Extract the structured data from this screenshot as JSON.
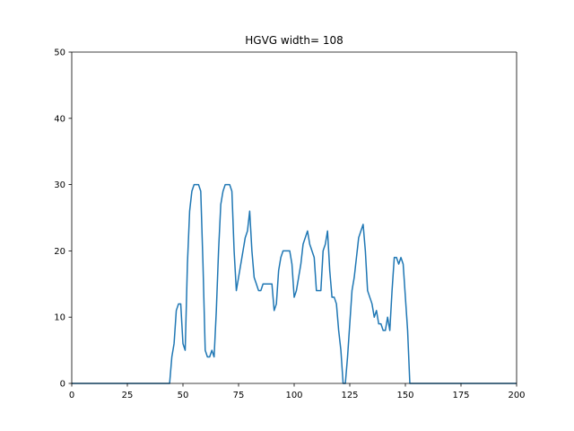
{
  "chart_data": {
    "type": "line",
    "title": "HGVG width= 108",
    "xlabel": "",
    "ylabel": "",
    "xlim": [
      0,
      200
    ],
    "ylim": [
      0,
      50
    ],
    "xticks": [
      0,
      25,
      50,
      75,
      100,
      125,
      150,
      175,
      200
    ],
    "yticks": [
      0,
      10,
      20,
      30,
      40,
      50
    ],
    "xtick_labels": [
      "0",
      "25",
      "50",
      "75",
      "100",
      "125",
      "150",
      "175",
      "200"
    ],
    "ytick_labels": [
      "0",
      "10",
      "20",
      "30",
      "40",
      "50"
    ],
    "grid": false,
    "legend": "none",
    "series": [
      {
        "color": "#1f77b4",
        "x": [
          0,
          44,
          45,
          46,
          47,
          48,
          49,
          50,
          51,
          52,
          53,
          54,
          55,
          56,
          57,
          58,
          59,
          60,
          61,
          62,
          63,
          64,
          65,
          66,
          67,
          68,
          69,
          70,
          71,
          72,
          73,
          74,
          75,
          76,
          77,
          78,
          79,
          80,
          81,
          82,
          83,
          84,
          85,
          86,
          87,
          88,
          89,
          90,
          91,
          92,
          93,
          94,
          95,
          96,
          97,
          98,
          99,
          100,
          101,
          102,
          103,
          104,
          105,
          106,
          107,
          108,
          109,
          110,
          111,
          112,
          113,
          114,
          115,
          116,
          117,
          118,
          119,
          120,
          121,
          122,
          123,
          124,
          125,
          126,
          127,
          128,
          129,
          130,
          131,
          132,
          133,
          134,
          135,
          136,
          137,
          138,
          139,
          140,
          141,
          142,
          143,
          144,
          145,
          146,
          147,
          148,
          149,
          150,
          151,
          152,
          153,
          200
        ],
        "y": [
          0,
          0,
          4,
          6,
          11,
          12,
          12,
          6,
          5,
          18,
          26,
          29,
          30,
          30,
          30,
          29,
          18,
          5,
          4,
          4,
          5,
          4,
          11,
          20,
          27,
          29,
          30,
          30,
          30,
          29,
          20,
          14,
          16,
          18,
          20,
          22,
          23,
          26,
          20,
          16,
          15,
          14,
          14,
          15,
          15,
          15,
          15,
          15,
          11,
          12,
          17,
          19,
          20,
          20,
          20,
          20,
          18,
          13,
          14,
          16,
          18,
          21,
          22,
          23,
          21,
          20,
          19,
          14,
          14,
          14,
          20,
          21,
          23,
          17,
          13,
          13,
          12,
          8,
          5,
          0,
          0,
          4,
          9,
          14,
          16,
          19,
          22,
          23,
          24,
          20,
          14,
          13,
          12,
          10,
          11,
          9,
          9,
          8,
          8,
          10,
          8,
          14,
          19,
          19,
          18,
          19,
          18,
          13,
          8,
          0,
          0,
          0
        ]
      }
    ]
  }
}
